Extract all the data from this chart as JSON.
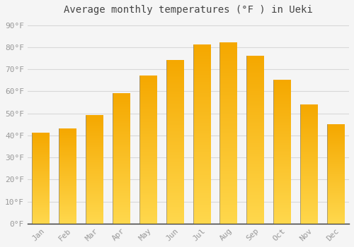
{
  "title": "Average monthly temperatures (°F ) in Ueki",
  "months": [
    "Jan",
    "Feb",
    "Mar",
    "Apr",
    "May",
    "Jun",
    "Jul",
    "Aug",
    "Sep",
    "Oct",
    "Nov",
    "Dec"
  ],
  "values": [
    41,
    43,
    49,
    59,
    67,
    74,
    81,
    82,
    76,
    65,
    54,
    45
  ],
  "bar_color_top": "#F5A800",
  "bar_color_bottom": "#FFD84D",
  "yticks": [
    0,
    10,
    20,
    30,
    40,
    50,
    60,
    70,
    80,
    90
  ],
  "ytick_labels": [
    "0°F",
    "10°F",
    "20°F",
    "30°F",
    "40°F",
    "50°F",
    "60°F",
    "70°F",
    "80°F",
    "90°F"
  ],
  "ylim": [
    0,
    93
  ],
  "background_color": "#F5F5F5",
  "grid_color": "#D8D8D8",
  "title_fontsize": 10,
  "tick_fontsize": 8,
  "bar_width": 0.65,
  "tick_color": "#999999"
}
